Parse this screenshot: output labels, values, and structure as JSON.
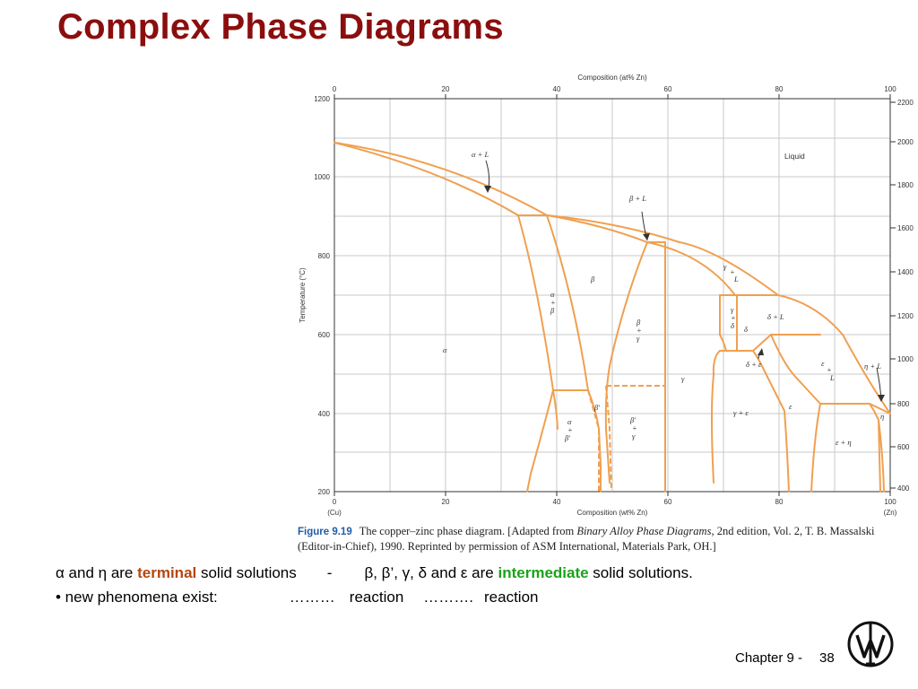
{
  "slide": {
    "title": "Complex Phase Diagrams",
    "footer_chapter": "Chapter 9 -",
    "footer_page": "38"
  },
  "figure": {
    "top_axis_title": "Composition (at% Zn)",
    "top_ticks": [
      "0",
      "20",
      "40",
      "60",
      "80",
      "100"
    ],
    "bottom_axis_title": "Composition (wt% Zn)",
    "bottom_ticks": [
      "0",
      "20",
      "40",
      "60",
      "80",
      "100"
    ],
    "bottom_end_labels": [
      "(Cu)",
      "(Zn)"
    ],
    "left_axis_title": "Temperature (°C)",
    "left_ticks": [
      "1200",
      "1000",
      "800",
      "600",
      "400",
      "200"
    ],
    "right_ticks": [
      "2200",
      "2000",
      "1800",
      "1600",
      "1400",
      "1200",
      "1000",
      "800",
      "600",
      "400"
    ],
    "phase_labels": {
      "liquid": "Liquid",
      "alpha_L": "α + L",
      "beta_L": "β + L",
      "gamma_L_1": "γ",
      "gamma_L_2": "+",
      "gamma_L_3": "L",
      "delta_L": "δ + L",
      "beta": "β",
      "alpha_beta_1": "α",
      "alpha_beta_2": "+",
      "alpha_beta_3": "β",
      "alpha": "α",
      "beta_gamma_1": "β",
      "beta_gamma_2": "+",
      "beta_gamma_3": "γ",
      "gamma_delta_1": "γ",
      "gamma_delta_2": "+",
      "gamma_delta_3": "δ",
      "delta": "δ",
      "delta_eps": "δ + ε",
      "eps_L_1": "ε",
      "eps_L_2": "+",
      "eps_L_3": "L",
      "eta_L": "η + L",
      "gamma": "γ",
      "beta_prime": "β′",
      "alpha_betap_1": "α",
      "alpha_betap_2": "+",
      "alpha_betap_3": "β′",
      "betap_gamma_1": "β′",
      "betap_gamma_2": "+",
      "betap_gamma_3": "γ",
      "gamma_eps": "γ + ε",
      "eps": "ε",
      "eta": "η",
      "eps_eta": "ε + η"
    },
    "caption": {
      "fig_label": "Figure 9.19",
      "text_a": "The copper–zinc phase diagram. [Adapted from ",
      "text_book": "Binary Alloy Phase Diagrams",
      "text_b": ", 2nd edition, Vol. 2, T. B. Massalski",
      "line2": "(Editor-in-Chief), 1990. Reprinted by permission of ASM International, Materials Park, OH.]"
    },
    "colors": {
      "phase_line": "#f0a050",
      "grid": "#c8c8c8",
      "frame": "#333333"
    }
  },
  "text": {
    "line1_a": "α and η are ",
    "line1_terminal": "terminal",
    "line1_b": " solid solutions",
    "line1_dash": "-",
    "line1_c": "β, β’, γ, δ and ε are ",
    "line1_intermediate": "intermediate",
    "line1_d": " solid solutions.",
    "line2_a": "• new phenomena exist:",
    "line2_dots1": "………",
    "line2_reaction1": "reaction",
    "line2_dots2": "……….",
    "line2_reaction2": "reaction"
  }
}
